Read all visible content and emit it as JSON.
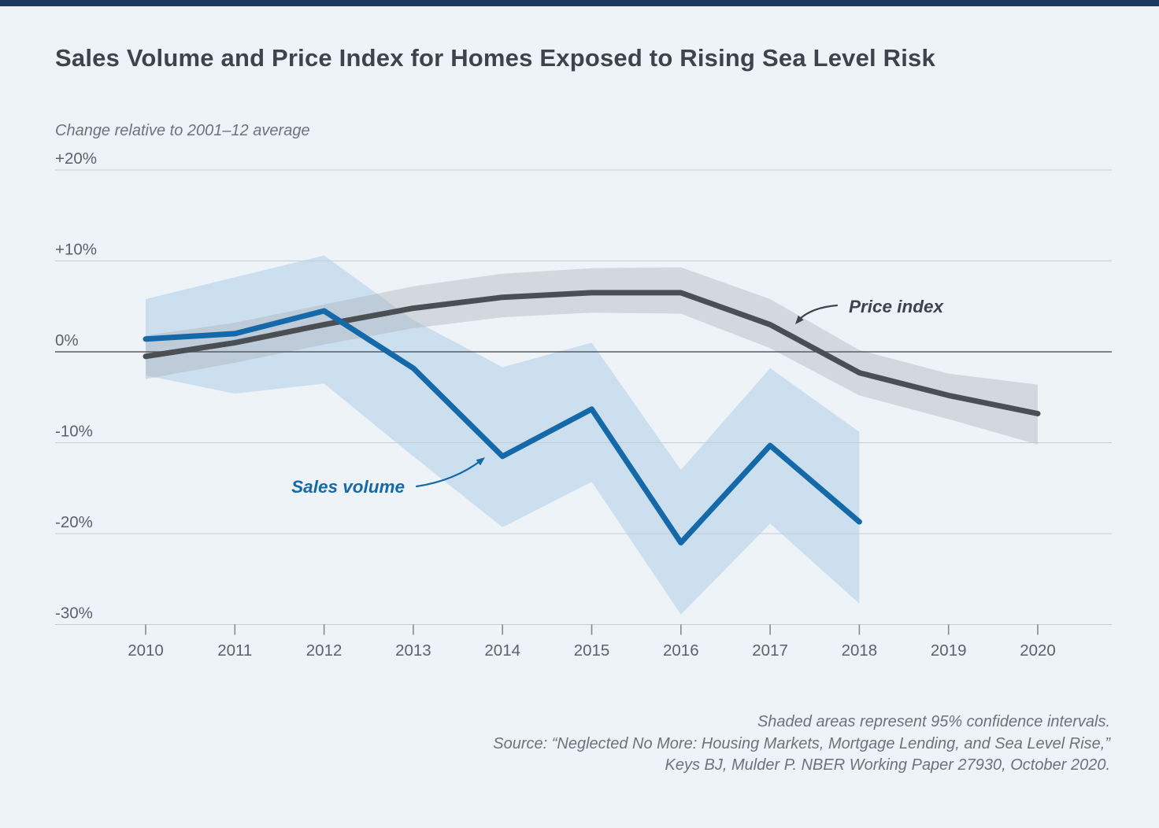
{
  "page": {
    "title": "Sales Volume and Price Index for Homes Exposed to Rising Sea Level Risk",
    "subtitle": "Change relative to 2001–12 average",
    "footnote_lines": [
      "Shaded areas represent 95% confidence intervals.",
      "Source: “Neglected No More: Housing Markets, Mortgage Lending, and Sea Level Rise,”",
      "Keys BJ, Mulder P. NBER Working Paper 27930, October 2020."
    ],
    "colors": {
      "background": "#eef3f8",
      "top_bar": "#1d3a5e",
      "sales_line": "#1569a8",
      "sales_band": "#9cc3e0",
      "price_line": "#4b4f54",
      "price_band": "#aab0b8",
      "gridline": "#c8ccd1",
      "zero_line": "#595d61",
      "axis_tick": "#85898e",
      "axis_text": "#5d6269",
      "annotation_dark": "#3e444a"
    }
  },
  "chart_data": {
    "type": "line",
    "title": "Sales Volume and Price Index for Homes Exposed to Rising Sea Level Risk",
    "subtitle": "Change relative to 2001–12 average",
    "note": "Shaded areas represent 95% confidence intervals.",
    "x": [
      2010,
      2011,
      2012,
      2013,
      2014,
      2015,
      2016,
      2017,
      2018,
      2019,
      2020
    ],
    "y_ticks": [
      "+20%",
      "+10%",
      "0%",
      "-10%",
      "-20%",
      "-30%"
    ],
    "y_tick_values": [
      20,
      10,
      0,
      -10,
      -20,
      -30
    ],
    "ylim": [
      -33,
      22
    ],
    "grid": true,
    "legend_position": "inline-annotations",
    "series": [
      {
        "name": "Price index",
        "x": [
          2010,
          2011,
          2012,
          2013,
          2014,
          2015,
          2016,
          2017,
          2018,
          2019,
          2020
        ],
        "values": [
          -0.5,
          1.0,
          3.0,
          4.8,
          6.0,
          6.5,
          6.5,
          3.0,
          -2.3,
          -4.8,
          -6.8
        ],
        "ci_upper": [
          1.8,
          3.2,
          5.2,
          7.2,
          8.6,
          9.2,
          9.3,
          5.8,
          0.2,
          -2.4,
          -3.6
        ],
        "ci_lower": [
          -3.0,
          -1.2,
          0.8,
          2.6,
          3.8,
          4.3,
          4.2,
          0.4,
          -4.8,
          -7.4,
          -10.2
        ]
      },
      {
        "name": "Sales volume",
        "x": [
          2010,
          2011,
          2012,
          2013,
          2014,
          2015,
          2016,
          2017,
          2018
        ],
        "values": [
          1.4,
          2.0,
          4.5,
          -1.8,
          -11.5,
          -6.3,
          -21.0,
          -10.3,
          -18.7
        ],
        "ci_upper": [
          5.8,
          8.2,
          10.6,
          3.5,
          -1.7,
          1.0,
          -13.0,
          -1.8,
          -8.8
        ],
        "ci_lower": [
          -2.6,
          -4.6,
          -3.5,
          -11.5,
          -19.3,
          -14.3,
          -28.9,
          -18.9,
          -27.7
        ]
      }
    ],
    "annotations": [
      {
        "text": "Price index",
        "series": "Price index"
      },
      {
        "text": "Sales volume",
        "series": "Sales volume"
      }
    ]
  }
}
